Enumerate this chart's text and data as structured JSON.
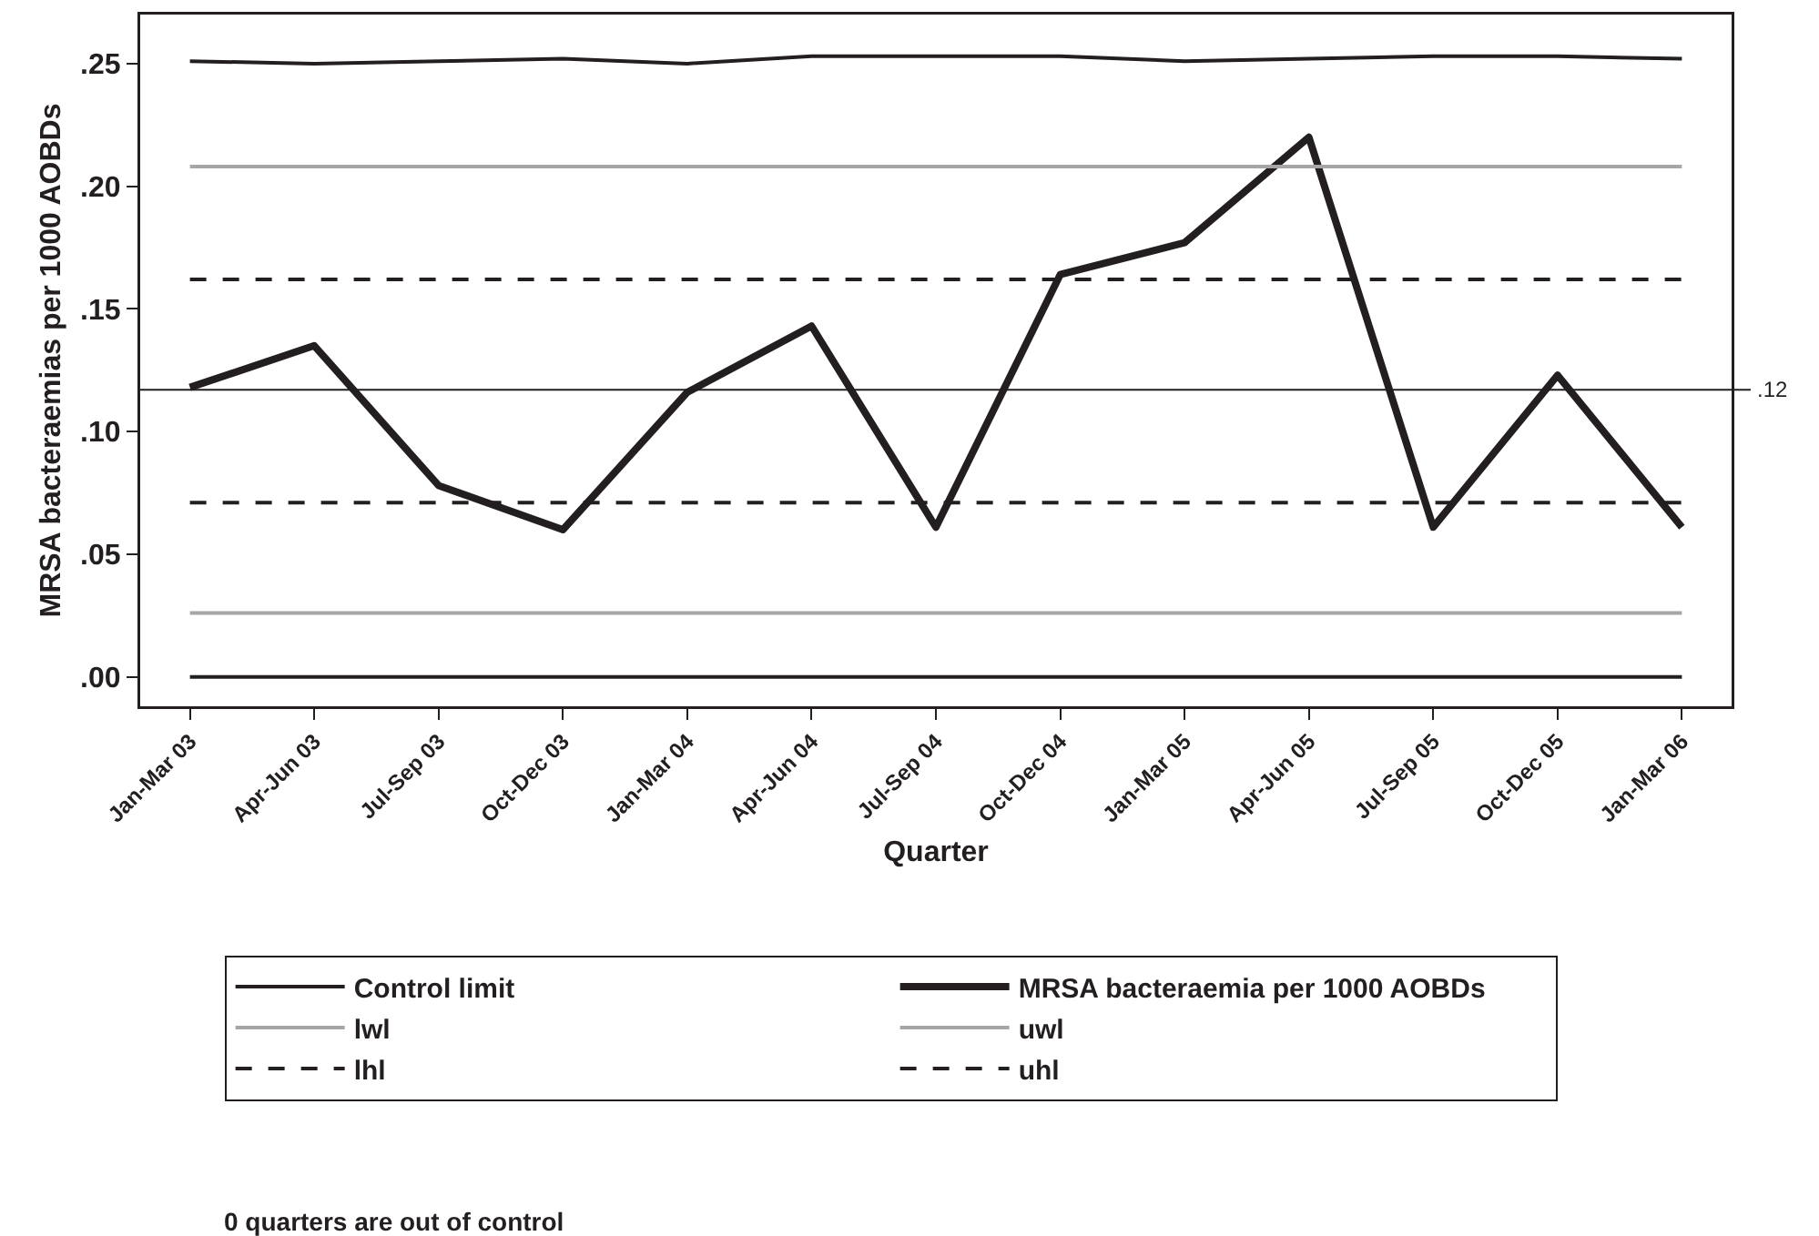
{
  "chart_data": {
    "type": "line",
    "xlabel": "Quarter",
    "ylabel": "MRSA bacteraemias per 1000 AOBDs",
    "categories": [
      "Jan-Mar 03",
      "Apr-Jun 03",
      "Jul-Sep 03",
      "Oct-Dec 03",
      "Jan-Mar 04",
      "Apr-Jun 04",
      "Jul-Sep 04",
      "Oct-Dec 04",
      "Jan-Mar 05",
      "Apr-Jun 05",
      "Jul-Sep 05",
      "Oct-Dec 05",
      "Jan-Mar 06"
    ],
    "series": [
      {
        "name": "Control limit",
        "color": "#231f20",
        "line_style": "solid",
        "values": [
          0.251,
          0.25,
          0.251,
          0.252,
          0.25,
          0.253,
          0.253,
          0.253,
          0.251,
          0.252,
          0.253,
          0.253,
          0.252
        ]
      },
      {
        "name": "MRSA bacteraemia per 1000 AOBDs",
        "color": "#231f20",
        "line_style": "solid",
        "values": [
          0.118,
          0.135,
          0.078,
          0.06,
          0.116,
          0.143,
          0.061,
          0.164,
          0.177,
          0.22,
          0.061,
          0.123,
          0.061
        ]
      },
      {
        "name": "lwl",
        "color": "#a6a6a6",
        "line_style": "solid",
        "values": [
          0.026,
          0.026,
          0.026,
          0.026,
          0.026,
          0.026,
          0.026,
          0.026,
          0.026,
          0.026,
          0.026,
          0.026,
          0.026
        ]
      },
      {
        "name": "uwl",
        "color": "#a6a6a6",
        "line_style": "solid",
        "values": [
          0.208,
          0.208,
          0.208,
          0.208,
          0.208,
          0.208,
          0.208,
          0.208,
          0.208,
          0.208,
          0.208,
          0.208,
          0.208
        ]
      },
      {
        "name": "lhl",
        "color": "#231f20",
        "line_style": "dashed",
        "values": [
          0.071,
          0.071,
          0.071,
          0.071,
          0.071,
          0.071,
          0.071,
          0.071,
          0.071,
          0.071,
          0.071,
          0.071,
          0.071
        ]
      },
      {
        "name": "uhl",
        "color": "#231f20",
        "line_style": "dashed",
        "values": [
          0.162,
          0.162,
          0.162,
          0.162,
          0.162,
          0.162,
          0.162,
          0.162,
          0.162,
          0.162,
          0.162,
          0.162,
          0.162
        ]
      },
      {
        "color": "#231f20",
        "line_style": "solid",
        "values": [
          0,
          0,
          0,
          0,
          0,
          0,
          0,
          0,
          0,
          0,
          0,
          0,
          0
        ]
      }
    ],
    "ylim": [
      -0.012,
      0.27
    ],
    "yticks": [
      {
        "value": 0,
        "label": ".00"
      },
      {
        "value": 0.05,
        "label": ".05"
      },
      {
        "value": 0.1,
        "label": ".10"
      },
      {
        "value": 0.15,
        "label": ".15"
      },
      {
        "value": 0.2,
        "label": ".20"
      },
      {
        "value": 0.25,
        "label": ".25"
      }
    ],
    "ref_lines": [
      {
        "axis": "y",
        "value": 0.117,
        "label": ".12",
        "color": "#231f20"
      }
    ],
    "annotations": [
      "0 quarters are out of control"
    ],
    "grid": false,
    "legend": "bottom",
    "marker": "none"
  }
}
